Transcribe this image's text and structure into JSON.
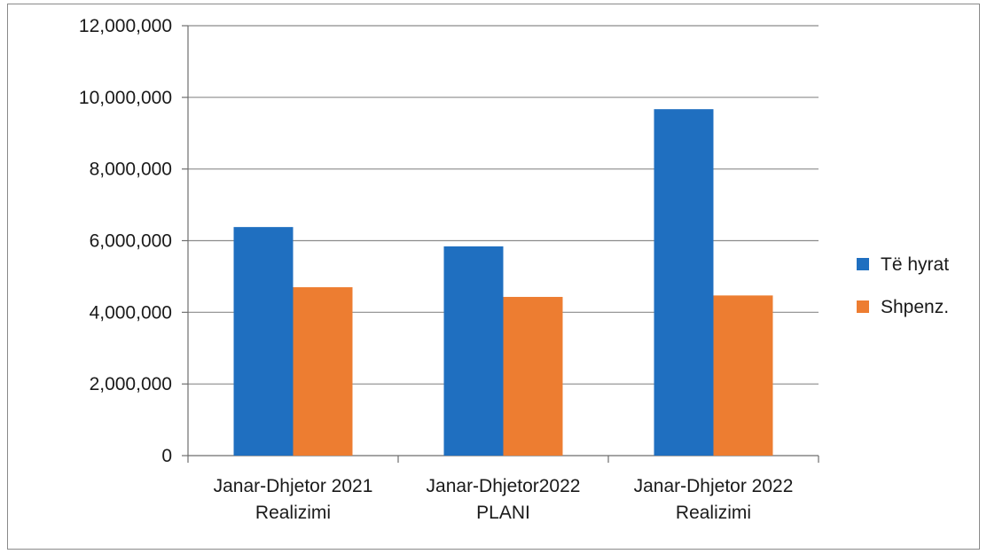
{
  "chart_data": {
    "type": "bar",
    "title": "",
    "xlabel": "",
    "ylabel": "",
    "categories": [
      [
        "Janar-Dhjetor 2021",
        "Realizimi"
      ],
      [
        "Janar-Dhjetor2022",
        "PLANI"
      ],
      [
        "Janar-Dhjetor 2022",
        "Realizimi"
      ]
    ],
    "series": [
      {
        "name": "Të hyrat",
        "color": "#1f6fc0",
        "values": [
          6380000,
          5840000,
          9670000
        ]
      },
      {
        "name": "Shpenz.",
        "color": "#ed7d31",
        "values": [
          4700000,
          4430000,
          4470000
        ]
      }
    ],
    "ylim": [
      0,
      12000000
    ],
    "yticks": [
      0,
      2000000,
      4000000,
      6000000,
      8000000,
      10000000,
      12000000
    ],
    "ytick_labels": [
      "0",
      "2,000,000",
      "4,000,000",
      "6,000,000",
      "8,000,000",
      "10,000,000",
      "12,000,000"
    ],
    "grid": true,
    "legend_position": "right"
  }
}
